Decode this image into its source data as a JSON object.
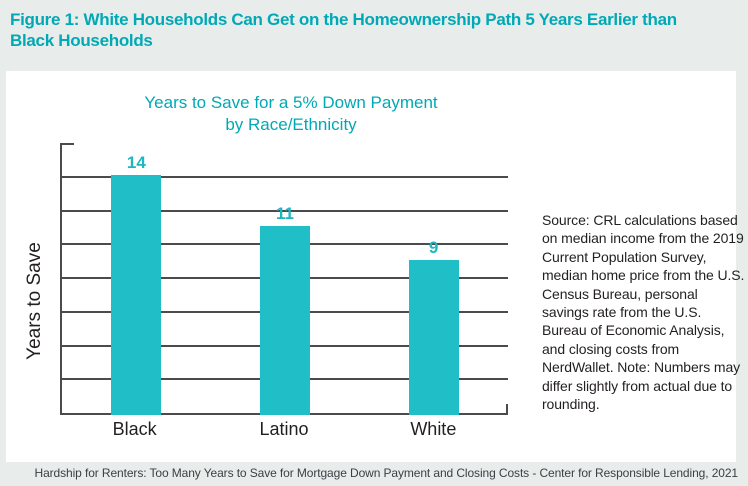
{
  "colors": {
    "background": "#e8edec",
    "panel": "#ffffff",
    "accent_teal": "#00a9b5",
    "bar_teal": "#20bec7",
    "value_label_teal": "#1db6c1",
    "axis": "#4b4b4d",
    "text_dark": "#231f20",
    "footer_text": "#3a4144"
  },
  "header": {
    "line1": "Figure 1: White Households Can Get on the Homeownership Path 5 Years Earlier than",
    "line2": "Black Households"
  },
  "chart_data": {
    "type": "bar",
    "title": "Years to Save for a 5% Down Payment by Race/Ethnicity",
    "title_lines": [
      "Years to Save for a 5% Down Payment",
      "by Race/Ethnicity"
    ],
    "categories": [
      "Black",
      "Latino",
      "White"
    ],
    "values": [
      14,
      11,
      9
    ],
    "xlabel": "",
    "ylabel": "Years to Save",
    "ylim": [
      0,
      16
    ],
    "gridline_step": 2,
    "grid": "horizontal",
    "legend": "none",
    "y_tick_labels_visible": false,
    "bar_value_labels": [
      "14",
      "11",
      "9"
    ]
  },
  "source_note": "Source: CRL calculations based on median income from the 2019 Current Population Survey, median home price from the U.S. Census Bureau, personal savings rate from the U.S. Bureau of Economic Analysis, and closing costs from NerdWallet. Note: Numbers may differ slightly from actual due to rounding.",
  "footer": {
    "text": "Hardship for Renters: Too Many Years to Save for Mortgage Down Payment and Closing Costs - Center for Responsible Lending, 2021"
  }
}
